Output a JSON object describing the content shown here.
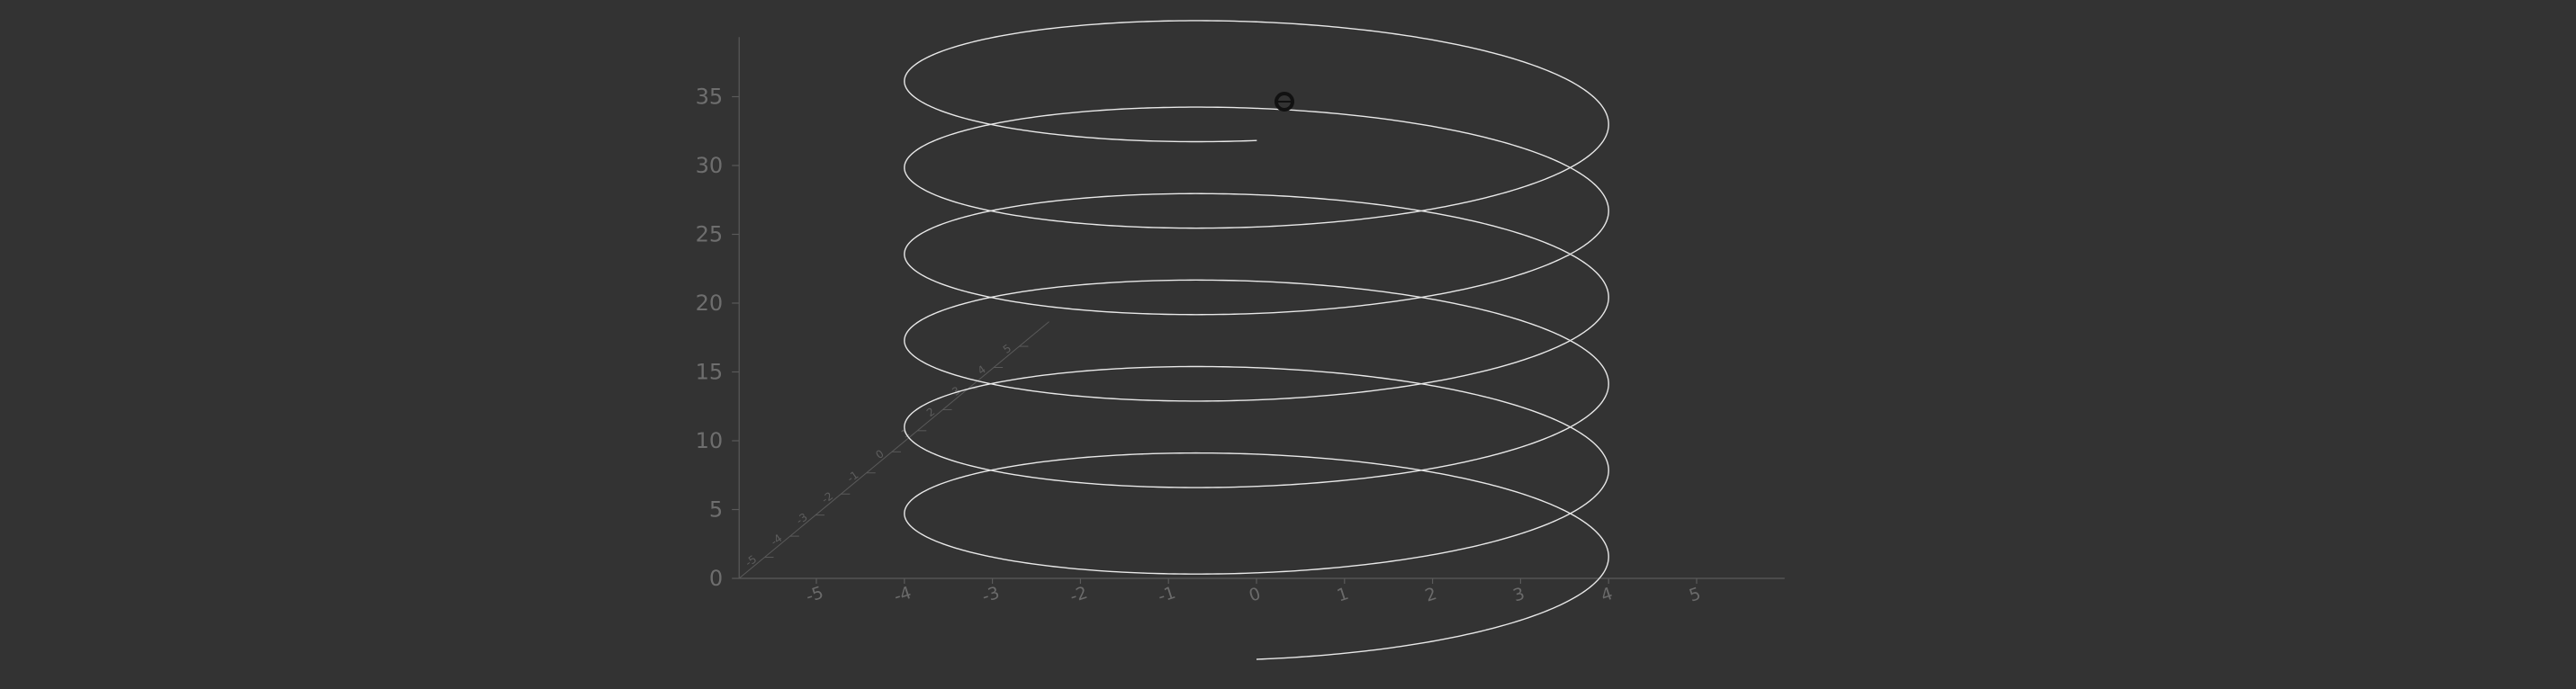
{
  "chart_data": {
    "type": "line",
    "title": "",
    "xlabel": "",
    "ylabel": "",
    "zlabel": "",
    "series": [
      {
        "name": "helix",
        "kind": "3d-parametric-helix",
        "equation": {
          "x": "4*sin(t)",
          "y": "4*cos(t)",
          "z": "t"
        },
        "t_range": [
          0,
          37.7
        ],
        "color": "#e8e8e8"
      }
    ],
    "x_axis": {
      "range": [
        -6,
        6
      ],
      "ticks": [
        -5,
        -4,
        -3,
        -2,
        -1,
        0,
        1,
        2,
        3,
        4,
        5
      ],
      "tick_labels": [
        "-5",
        "-4",
        "-3",
        "-2",
        "-1",
        "0",
        "1",
        "2",
        "3",
        "4",
        "5"
      ]
    },
    "y_axis": {
      "range": [
        -6,
        6
      ],
      "ticks": [
        -5,
        -4,
        -3,
        -2,
        -1,
        0,
        1,
        2,
        3,
        4,
        5
      ],
      "tick_labels": [
        "-5",
        "-4",
        "-3",
        "-2",
        "-1",
        "0",
        "1",
        "2",
        "3",
        "4",
        "5"
      ]
    },
    "z_axis": {
      "range": [
        0,
        37.7
      ],
      "ticks": [
        0,
        5,
        10,
        15,
        20,
        25,
        30,
        35
      ],
      "tick_labels": [
        "0",
        "5",
        "10",
        "15",
        "20",
        "25",
        "30",
        "35"
      ]
    },
    "grid": false,
    "legend": "none",
    "colors": {
      "background": "#333333",
      "axis": "#5a5a5a",
      "curve": "#e8e8e8",
      "marker": "#111111"
    },
    "cursor_marker": {
      "shape": "circle",
      "color": "#111111"
    }
  }
}
